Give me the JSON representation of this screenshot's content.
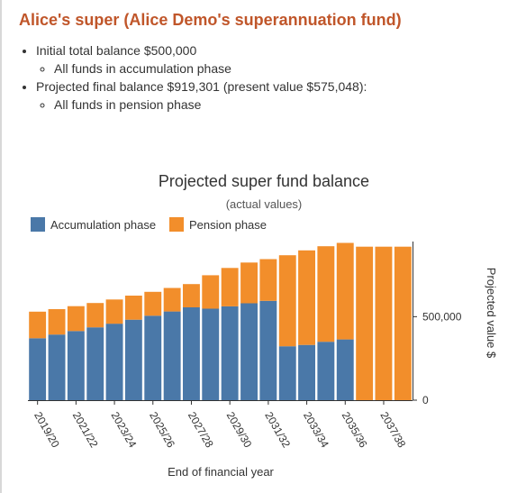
{
  "page": {
    "title": "Alice's super (Alice Demo's superannuation fund)",
    "bullets": [
      {
        "text": "Initial total balance $500,000",
        "sub": "All funds in accumulation phase"
      },
      {
        "text": "Projected final balance $919,301 (present value $575,048):",
        "sub": "All funds in pension phase"
      }
    ]
  },
  "colors": {
    "accumulation": "#4a78a8",
    "pension": "#f28e2b",
    "title": "#c0562a"
  },
  "chart_data": {
    "type": "bar",
    "stacked": true,
    "title": "Projected super fund balance",
    "subtitle": "(actual values)",
    "xlabel": "End of financial year",
    "ylabel": "Projected value $",
    "ylim": [
      0,
      950000
    ],
    "yticks": [
      {
        "value": 0,
        "label": "0"
      },
      {
        "value": 500000,
        "label": "500,000"
      }
    ],
    "legend_position": "top-left",
    "categories": [
      "2019/20",
      "2020/21",
      "2021/22",
      "2022/23",
      "2023/24",
      "2024/25",
      "2025/26",
      "2026/27",
      "2027/28",
      "2028/29",
      "2029/30",
      "2030/31",
      "2031/32",
      "2032/33",
      "2033/34",
      "2034/35",
      "2035/36",
      "2036/37",
      "2037/38",
      "2038/39"
    ],
    "tick_labels": [
      "2019/20",
      "2021/22",
      "2023/24",
      "2025/26",
      "2027/28",
      "2029/30",
      "2031/32",
      "2033/34",
      "2035/36",
      "2037/38"
    ],
    "series": [
      {
        "name": "Accumulation phase",
        "values": [
          371000,
          393000,
          414000,
          436000,
          458000,
          482000,
          506000,
          531000,
          556000,
          548000,
          562000,
          580000,
          595000,
          323000,
          331000,
          350000,
          364000,
          0,
          0,
          0
        ]
      },
      {
        "name": "Pension phase",
        "values": [
          159000,
          152000,
          149000,
          146000,
          145000,
          144000,
          143000,
          141000,
          139000,
          200000,
          230000,
          244000,
          250000,
          545000,
          566000,
          572000,
          578000,
          919000,
          919000,
          919000
        ]
      }
    ]
  }
}
